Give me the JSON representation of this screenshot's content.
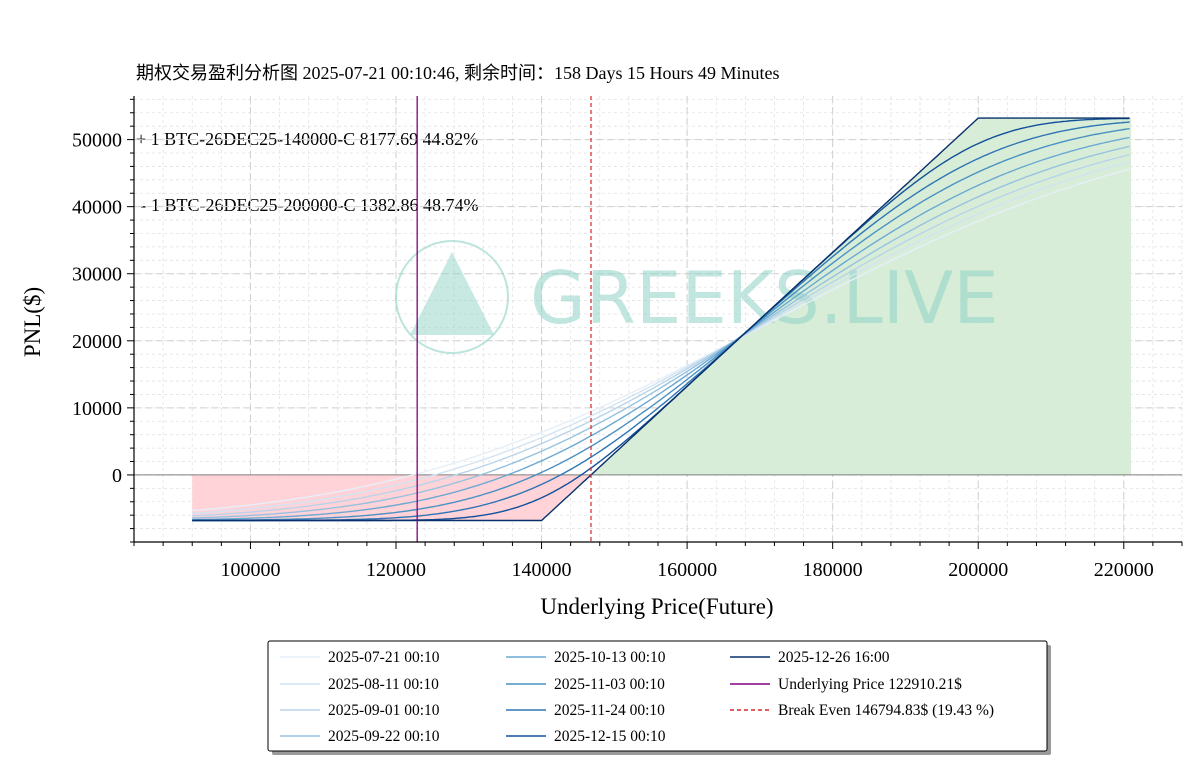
{
  "title_lines": [
    "期权交易盈利分析图 2025-07-21 00:10:46, 剩余时间：158 Days 15 Hours 49 Minutes",
    "+ 1 BTC-26DEC25-140000-C 8177.69 44.82%",
    " - 1 BTC-26DEC25-200000-C 1382.86 48.74%"
  ],
  "watermark": "GREEKS.LIVE",
  "chart_data": {
    "type": "line",
    "xlabel": "Underlying Price(Future)",
    "ylabel": "PNL($)",
    "xlim": [
      84000,
      228000
    ],
    "ylim": [
      -10000,
      56500
    ],
    "x_ticks": [
      100000,
      120000,
      140000,
      160000,
      180000,
      200000,
      220000
    ],
    "y_ticks": [
      0,
      10000,
      20000,
      30000,
      40000,
      50000
    ],
    "x_range": [
      92000,
      221000
    ],
    "strategy": {
      "long_call_strike": 140000,
      "long_premium": 8177.69,
      "short_call_strike": 200000,
      "short_premium": 1382.86
    },
    "expiry_payoff": {
      "max_loss": -6794.83,
      "max_profit": 53205.17
    },
    "underlying_price": 122910.21,
    "break_even": 146794.83,
    "series": [
      {
        "name": "2025-07-21 00:10",
        "color": "#e6eff8",
        "spread": 36000
      },
      {
        "name": "2025-08-11 00:10",
        "color": "#d2e3f2",
        "spread": 33000
      },
      {
        "name": "2025-09-01 00:10",
        "color": "#b8d4ea",
        "spread": 30000
      },
      {
        "name": "2025-09-22 00:10",
        "color": "#96c2e0",
        "spread": 26500
      },
      {
        "name": "2025-10-13 00:10",
        "color": "#6ba9d2",
        "spread": 22500
      },
      {
        "name": "2025-11-03 00:10",
        "color": "#4a91c4",
        "spread": 18000
      },
      {
        "name": "2025-11-24 00:10",
        "color": "#2e75b5",
        "spread": 13500
      },
      {
        "name": "2025-12-15 00:10",
        "color": "#12509a",
        "spread": 8500
      },
      {
        "name": "2025-12-26 16:00",
        "color": "#08306b",
        "spread": 0
      }
    ],
    "legend": {
      "placement": "bottom-center",
      "underlying_label": "Underlying Price 122910.21$",
      "break_even_label": "Break Even 146794.83$ (19.43 %)"
    },
    "colors": {
      "underlying": "#800080",
      "break_even": "#d62728",
      "profit_fill": "#d6ecd6",
      "loss_fill": "#ffd1d6",
      "zero_line": "#808080"
    },
    "grid": true
  }
}
